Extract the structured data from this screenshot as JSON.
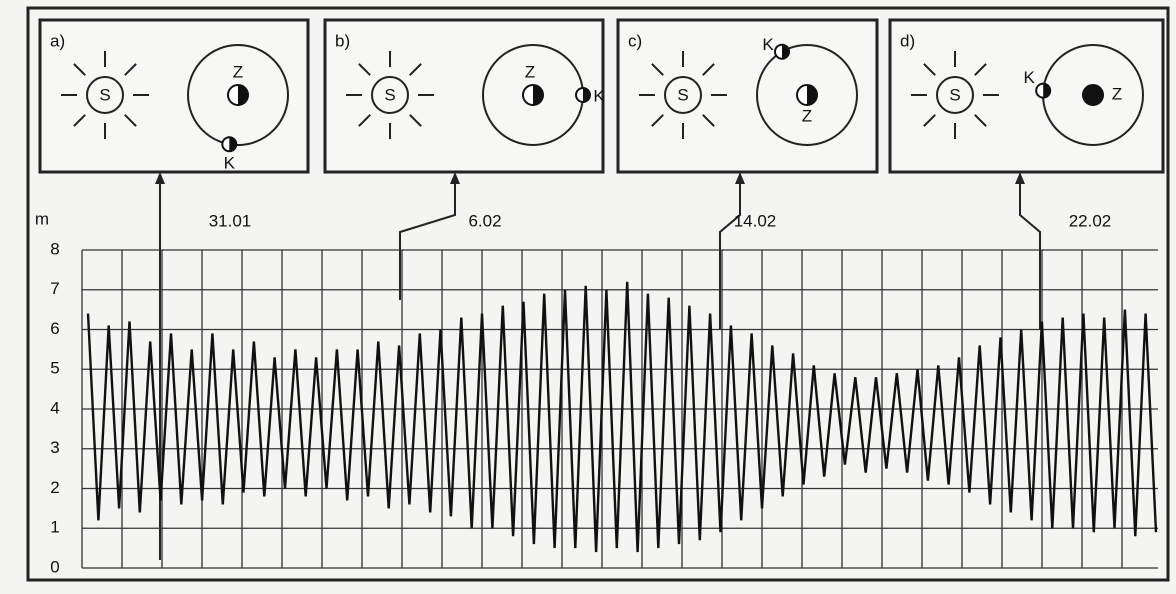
{
  "panels": [
    {
      "label": "a)",
      "sun": "S",
      "earth": "Z",
      "moon": "K",
      "date": "31.01"
    },
    {
      "label": "b)",
      "sun": "S",
      "earth": "Z",
      "moon": "K",
      "date": "6.02"
    },
    {
      "label": "c)",
      "sun": "S",
      "earth": "Z",
      "moon": "K",
      "date": "14.02"
    },
    {
      "label": "d)",
      "sun": "S",
      "earth": "Z",
      "moon": "K",
      "date": "22.02"
    }
  ],
  "chart": {
    "y_label": "m",
    "ylim": [
      0,
      8
    ],
    "yticks": [
      0,
      1,
      2,
      3,
      4,
      5,
      6,
      7,
      8
    ],
    "values": [
      6.4,
      1.2,
      6.1,
      1.5,
      6.2,
      1.4,
      5.7,
      1.7,
      5.9,
      1.6,
      5.5,
      1.7,
      5.9,
      1.6,
      5.5,
      1.9,
      5.7,
      1.8,
      5.3,
      2.0,
      5.5,
      1.8,
      5.3,
      2.0,
      5.5,
      1.7,
      5.5,
      1.8,
      5.7,
      1.5,
      5.6,
      1.6,
      5.9,
      1.4,
      6.0,
      1.3,
      6.3,
      1.0,
      6.4,
      1.0,
      6.6,
      0.8,
      6.7,
      0.6,
      6.9,
      0.5,
      7.0,
      0.5,
      7.1,
      0.4,
      7.0,
      0.5,
      7.2,
      0.4,
      6.9,
      0.5,
      6.8,
      0.6,
      6.6,
      0.7,
      6.4,
      0.9,
      6.1,
      1.2,
      5.9,
      1.5,
      5.6,
      1.8,
      5.4,
      2.1,
      5.1,
      2.3,
      4.9,
      2.6,
      4.8,
      2.4,
      4.8,
      2.5,
      4.9,
      2.4,
      5.0,
      2.2,
      5.1,
      2.1,
      5.3,
      1.9,
      5.6,
      1.6,
      5.8,
      1.4,
      6.0,
      1.2,
      6.2,
      1.0,
      6.3,
      1.0,
      6.4,
      0.9,
      6.3,
      1.0,
      6.5,
      0.8,
      6.4,
      0.9
    ]
  }
}
